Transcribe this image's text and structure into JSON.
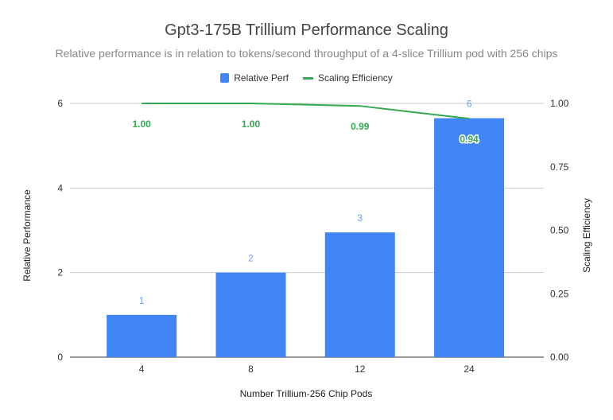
{
  "chart_data": {
    "type": "bar",
    "title": "Gpt3-175B Trillium Performance Scaling",
    "subtitle": "Relative performance is in relation to tokens/second throughput of a 4-slice Trillium pod with 256 chips",
    "xlabel": "Number Trillium-256 Chip Pods",
    "ylabel": "Relative Performance",
    "y2label": "Scaling Efficiency",
    "categories": [
      "4",
      "8",
      "12",
      "24"
    ],
    "ylim": [
      0,
      6
    ],
    "yticks": [
      "0",
      "2",
      "4",
      "6"
    ],
    "y2lim": [
      0,
      1
    ],
    "y2ticks": [
      "0.00",
      "0.25",
      "0.50",
      "0.75",
      "1.00"
    ],
    "legend_position": "top",
    "grid": true,
    "series": [
      {
        "name": "Relative Perf",
        "type": "bar",
        "color": "#4285f4",
        "values": [
          1,
          2,
          2.95,
          5.65
        ],
        "labels": [
          "1",
          "2",
          "3",
          "6"
        ]
      },
      {
        "name": "Scaling Efficiency",
        "type": "line",
        "axis": "right",
        "color": "#34a853",
        "values": [
          1.0,
          1.0,
          0.99,
          0.94
        ],
        "labels": [
          "1.00",
          "1.00",
          "0.99",
          "0.94"
        ]
      }
    ]
  }
}
